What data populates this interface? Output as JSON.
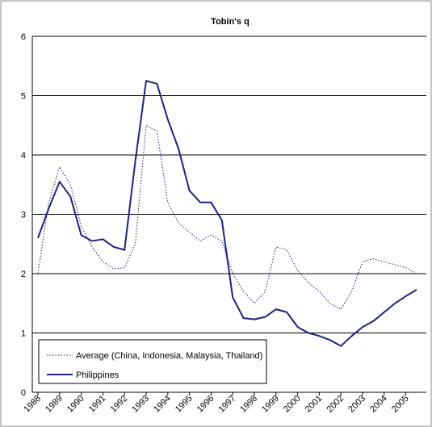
{
  "chart_data": {
    "type": "line",
    "title": "Tobin's q",
    "categories": [
      "1988",
      null,
      "1989",
      null,
      "1990",
      null,
      "1991",
      null,
      "1992",
      null,
      "1993",
      null,
      "1994",
      null,
      "1995",
      null,
      "1996",
      null,
      "1997",
      null,
      "1998",
      null,
      "1999",
      null,
      "2000",
      null,
      "2001",
      null,
      "2002",
      null,
      "2003",
      null,
      "2004",
      null,
      "2005",
      null
    ],
    "series": [
      {
        "name": "Average (China, Indonesia, Malaysia, Thailand)",
        "color": "#1f1f6e",
        "dash": "dotted",
        "values": [
          2.0,
          3.2,
          3.8,
          3.5,
          2.8,
          2.45,
          2.2,
          2.08,
          2.1,
          2.5,
          4.5,
          4.4,
          3.2,
          2.85,
          2.7,
          2.55,
          2.65,
          2.55,
          2.0,
          1.7,
          1.5,
          1.7,
          2.45,
          2.4,
          2.05,
          1.85,
          1.7,
          1.5,
          1.4,
          1.7,
          2.2,
          2.25,
          2.2,
          2.15,
          2.1,
          2.0
        ]
      },
      {
        "name": "Philippines",
        "color": "#1f1f8c",
        "dash": "solid",
        "values": [
          2.6,
          3.1,
          3.55,
          3.3,
          2.65,
          2.55,
          2.58,
          2.45,
          2.4,
          3.9,
          5.25,
          5.2,
          4.6,
          4.1,
          3.4,
          3.2,
          3.2,
          2.9,
          1.6,
          1.25,
          1.23,
          1.27,
          1.4,
          1.35,
          1.1,
          1.0,
          0.95,
          0.88,
          0.78,
          0.95,
          1.1,
          1.2,
          1.35,
          1.5,
          1.62,
          1.73
        ]
      }
    ],
    "ylim": [
      0,
      6
    ],
    "yticks": [
      0,
      1,
      2,
      3,
      4,
      5,
      6
    ],
    "grid": true,
    "legend": "lower left"
  }
}
